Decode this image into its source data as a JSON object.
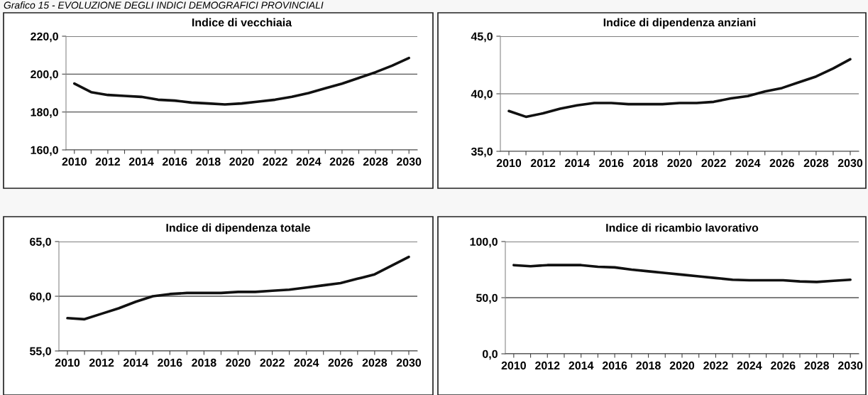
{
  "chart_data": [
    {
      "type": "line",
      "title": "Indice di vecchiaia",
      "annotations": [
        "Grafico 15 - EVOLUZIONE DEGLI INDICI DEMOGRAFICI PROVINCIALI"
      ],
      "categories": [
        "2010",
        null,
        "2012",
        null,
        "2014",
        null,
        "2016",
        null,
        "2018",
        null,
        "2020",
        null,
        "2022",
        null,
        "2024",
        null,
        "2026",
        null,
        "2028",
        null,
        "2030"
      ],
      "series": [
        {
          "color": "#111111",
          "values": [
            195,
            190.5,
            189,
            188.5,
            188,
            186.5,
            186,
            185,
            184.5,
            184,
            184.5,
            185.5,
            186.5,
            188,
            190,
            192.5,
            195,
            198,
            201,
            204.5,
            208.5
          ]
        }
      ],
      "ylim": [
        160,
        220
      ],
      "yticks": [
        {
          "value": 160,
          "label": "160,0"
        },
        {
          "value": 180,
          "label": "180,0"
        },
        {
          "value": 200,
          "label": "200,0"
        },
        {
          "value": 220,
          "label": "220,0"
        }
      ],
      "grid": "y",
      "marker": "none",
      "line_style": "solid"
    },
    {
      "type": "line",
      "title": "Indice di dipendenza anziani",
      "categories": [
        "2010",
        null,
        "2012",
        null,
        "2014",
        null,
        "2016",
        null,
        "2018",
        null,
        "2020",
        null,
        "2022",
        null,
        "2024",
        null,
        "2026",
        null,
        "2028",
        null,
        "2030"
      ],
      "series": [
        {
          "color": "#111111",
          "values": [
            38.5,
            38.0,
            38.3,
            38.7,
            39.0,
            39.2,
            39.2,
            39.1,
            39.1,
            39.1,
            39.2,
            39.2,
            39.3,
            39.6,
            39.8,
            40.2,
            40.5,
            41.0,
            41.5,
            42.2,
            43.0
          ]
        }
      ],
      "ylim": [
        35,
        45
      ],
      "yticks": [
        {
          "value": 35,
          "label": "35,0"
        },
        {
          "value": 40,
          "label": "40,0"
        },
        {
          "value": 45,
          "label": "45,0"
        }
      ],
      "grid": "y",
      "marker": "none",
      "line_style": "solid"
    },
    {
      "type": "line",
      "title": "Indice di dipendenza totale",
      "categories": [
        "2010",
        null,
        "2012",
        null,
        "2014",
        null,
        "2016",
        null,
        "2018",
        null,
        "2020",
        null,
        "2022",
        null,
        "2024",
        null,
        "2026",
        null,
        "2028",
        null,
        "2030"
      ],
      "series": [
        {
          "color": "#111111",
          "values": [
            58.0,
            57.9,
            58.4,
            58.9,
            59.5,
            60.0,
            60.2,
            60.3,
            60.3,
            60.3,
            60.4,
            60.4,
            60.5,
            60.6,
            60.8,
            61.0,
            61.2,
            61.6,
            62.0,
            62.8,
            63.6
          ]
        }
      ],
      "ylim": [
        55,
        65
      ],
      "yticks": [
        {
          "value": 55,
          "label": "55,0"
        },
        {
          "value": 60,
          "label": "60,0"
        },
        {
          "value": 65,
          "label": "65,0"
        }
      ],
      "grid": "y",
      "marker": "none",
      "line_style": "solid"
    },
    {
      "type": "line",
      "title": "Indice di ricambio lavorativo",
      "categories": [
        "2010",
        null,
        "2012",
        null,
        "2014",
        null,
        "2016",
        null,
        "2018",
        null,
        "2020",
        null,
        "2022",
        null,
        "2024",
        null,
        "2026",
        null,
        "2028",
        null,
        "2030"
      ],
      "series": [
        {
          "color": "#111111",
          "values": [
            79,
            78,
            79,
            79,
            79,
            77.5,
            77,
            75,
            73.5,
            72,
            70.5,
            69,
            67.5,
            66,
            65.5,
            65.5,
            65.5,
            64.5,
            64,
            65,
            66
          ]
        }
      ],
      "ylim": [
        0,
        100
      ],
      "yticks": [
        {
          "value": 0,
          "label": "0,0"
        },
        {
          "value": 50,
          "label": "50,0"
        },
        {
          "value": 100,
          "label": "100,0"
        }
      ],
      "grid": "y",
      "marker": "none",
      "line_style": "solid"
    }
  ]
}
